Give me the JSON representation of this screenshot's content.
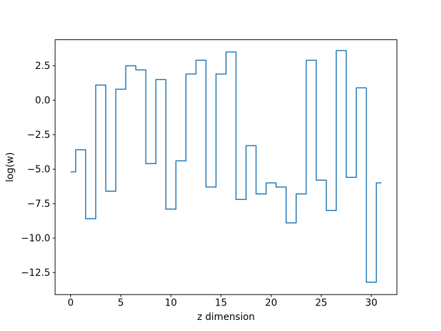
{
  "figure": {
    "background": "#ffffff"
  },
  "chart_data": {
    "type": "line",
    "step_style": "mid",
    "title": "",
    "xlabel": "z dimension",
    "ylabel": "log(w)",
    "x": [
      0,
      1,
      2,
      3,
      4,
      5,
      6,
      7,
      8,
      9,
      10,
      11,
      12,
      13,
      14,
      15,
      16,
      17,
      18,
      19,
      20,
      21,
      22,
      23,
      24,
      25,
      26,
      27,
      28,
      29,
      30,
      31
    ],
    "values": [
      -5.2,
      -3.6,
      -8.6,
      1.1,
      -6.6,
      0.8,
      2.5,
      2.2,
      -4.6,
      1.5,
      -7.9,
      -4.4,
      1.9,
      2.9,
      -6.3,
      1.9,
      3.5,
      -7.2,
      -3.3,
      -6.8,
      -6.0,
      -6.3,
      -8.9,
      -6.8,
      2.9,
      -5.8,
      -8.0,
      3.6,
      -5.6,
      0.9,
      -13.2,
      -6.0
    ],
    "xlim": [
      -1.55,
      32.55
    ],
    "ylim": [
      -14.1,
      4.39
    ],
    "xtick_values": [
      0,
      5,
      10,
      15,
      20,
      25,
      30
    ],
    "xtick_labels": [
      "0",
      "5",
      "10",
      "15",
      "20",
      "25",
      "30"
    ],
    "ytick_values": [
      2.5,
      0.0,
      -2.5,
      -5.0,
      -7.5,
      -10.0,
      -12.5
    ],
    "ytick_labels": [
      "2.5",
      "0.0",
      "−2.5",
      "−5.0",
      "−7.5",
      "−10.0",
      "−12.5"
    ],
    "grid": false,
    "legend": null,
    "line_color": "#1f77b4",
    "line_width": 1.5,
    "axis_color": "#000000",
    "text_color": "#000000"
  }
}
